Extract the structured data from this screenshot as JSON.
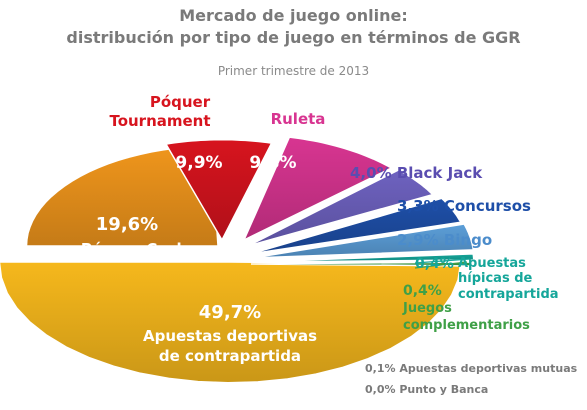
{
  "chart_data": {
    "type": "pie",
    "title": "Mercado de juego online:",
    "subtitle": "distribución por tipo de juego en términos de GGR",
    "caption": "Primer trimestre de 2013",
    "slices": [
      {
        "name": "Apuestas deportivas de contrapartida",
        "label_line1": "Apuestas deportivas",
        "label_line2": "de contrapartida",
        "value": 49.7,
        "value_label": "49,7%",
        "color": "#F6B81C"
      },
      {
        "name": "Póquer Cash",
        "label_line1": "Póquer Cash",
        "value": 19.6,
        "value_label": "19,6%",
        "color": "#F0961C"
      },
      {
        "name": "Póquer Tournament",
        "label_line1": "Póquer",
        "label_line2": "Tournament",
        "value": 9.9,
        "value_label": "9,9%",
        "color": "#D7141E"
      },
      {
        "name": "Ruleta",
        "label_line1": "Ruleta",
        "value": 9.8,
        "value_label": "9,8%",
        "color": "#D83591"
      },
      {
        "name": "Black Jack",
        "label_line1": "Black Jack",
        "value": 4.0,
        "value_label": "4,0%",
        "color": "#6E62C0"
      },
      {
        "name": "Concursos",
        "label_line1": "Concursos",
        "value": 3.3,
        "value_label": "3,3%",
        "color": "#1E4FA8"
      },
      {
        "name": "Bingo",
        "label_line1": "Bingo",
        "value": 2.9,
        "value_label": "2,9%",
        "color": "#5C9FD9"
      },
      {
        "name": "Apuestas hípicas de contrapartida",
        "label_line1": "Apuestas",
        "label_line2": "hípicas de",
        "label_line3": "contrapartida",
        "value": 0.4,
        "value_label": "0,4%",
        "color": "#15A69A"
      },
      {
        "name": "Juegos complementarios",
        "label_line1": "Juegos",
        "label_line2": "complementarios",
        "value": 0.4,
        "value_label": "0,4%",
        "color": "#3FA047"
      },
      {
        "name": "Apuestas deportivas mutuas",
        "value": 0.1,
        "value_label": "0,1%",
        "color": "#7a7a7a"
      },
      {
        "name": "Punto y Banca",
        "value": 0.0,
        "value_label": "0,0%",
        "color": "#7a7a7a"
      }
    ]
  },
  "colors": {
    "title": "#7a7a7a",
    "white_text": "#ffffff",
    "footnote": "#7a7a7a"
  }
}
